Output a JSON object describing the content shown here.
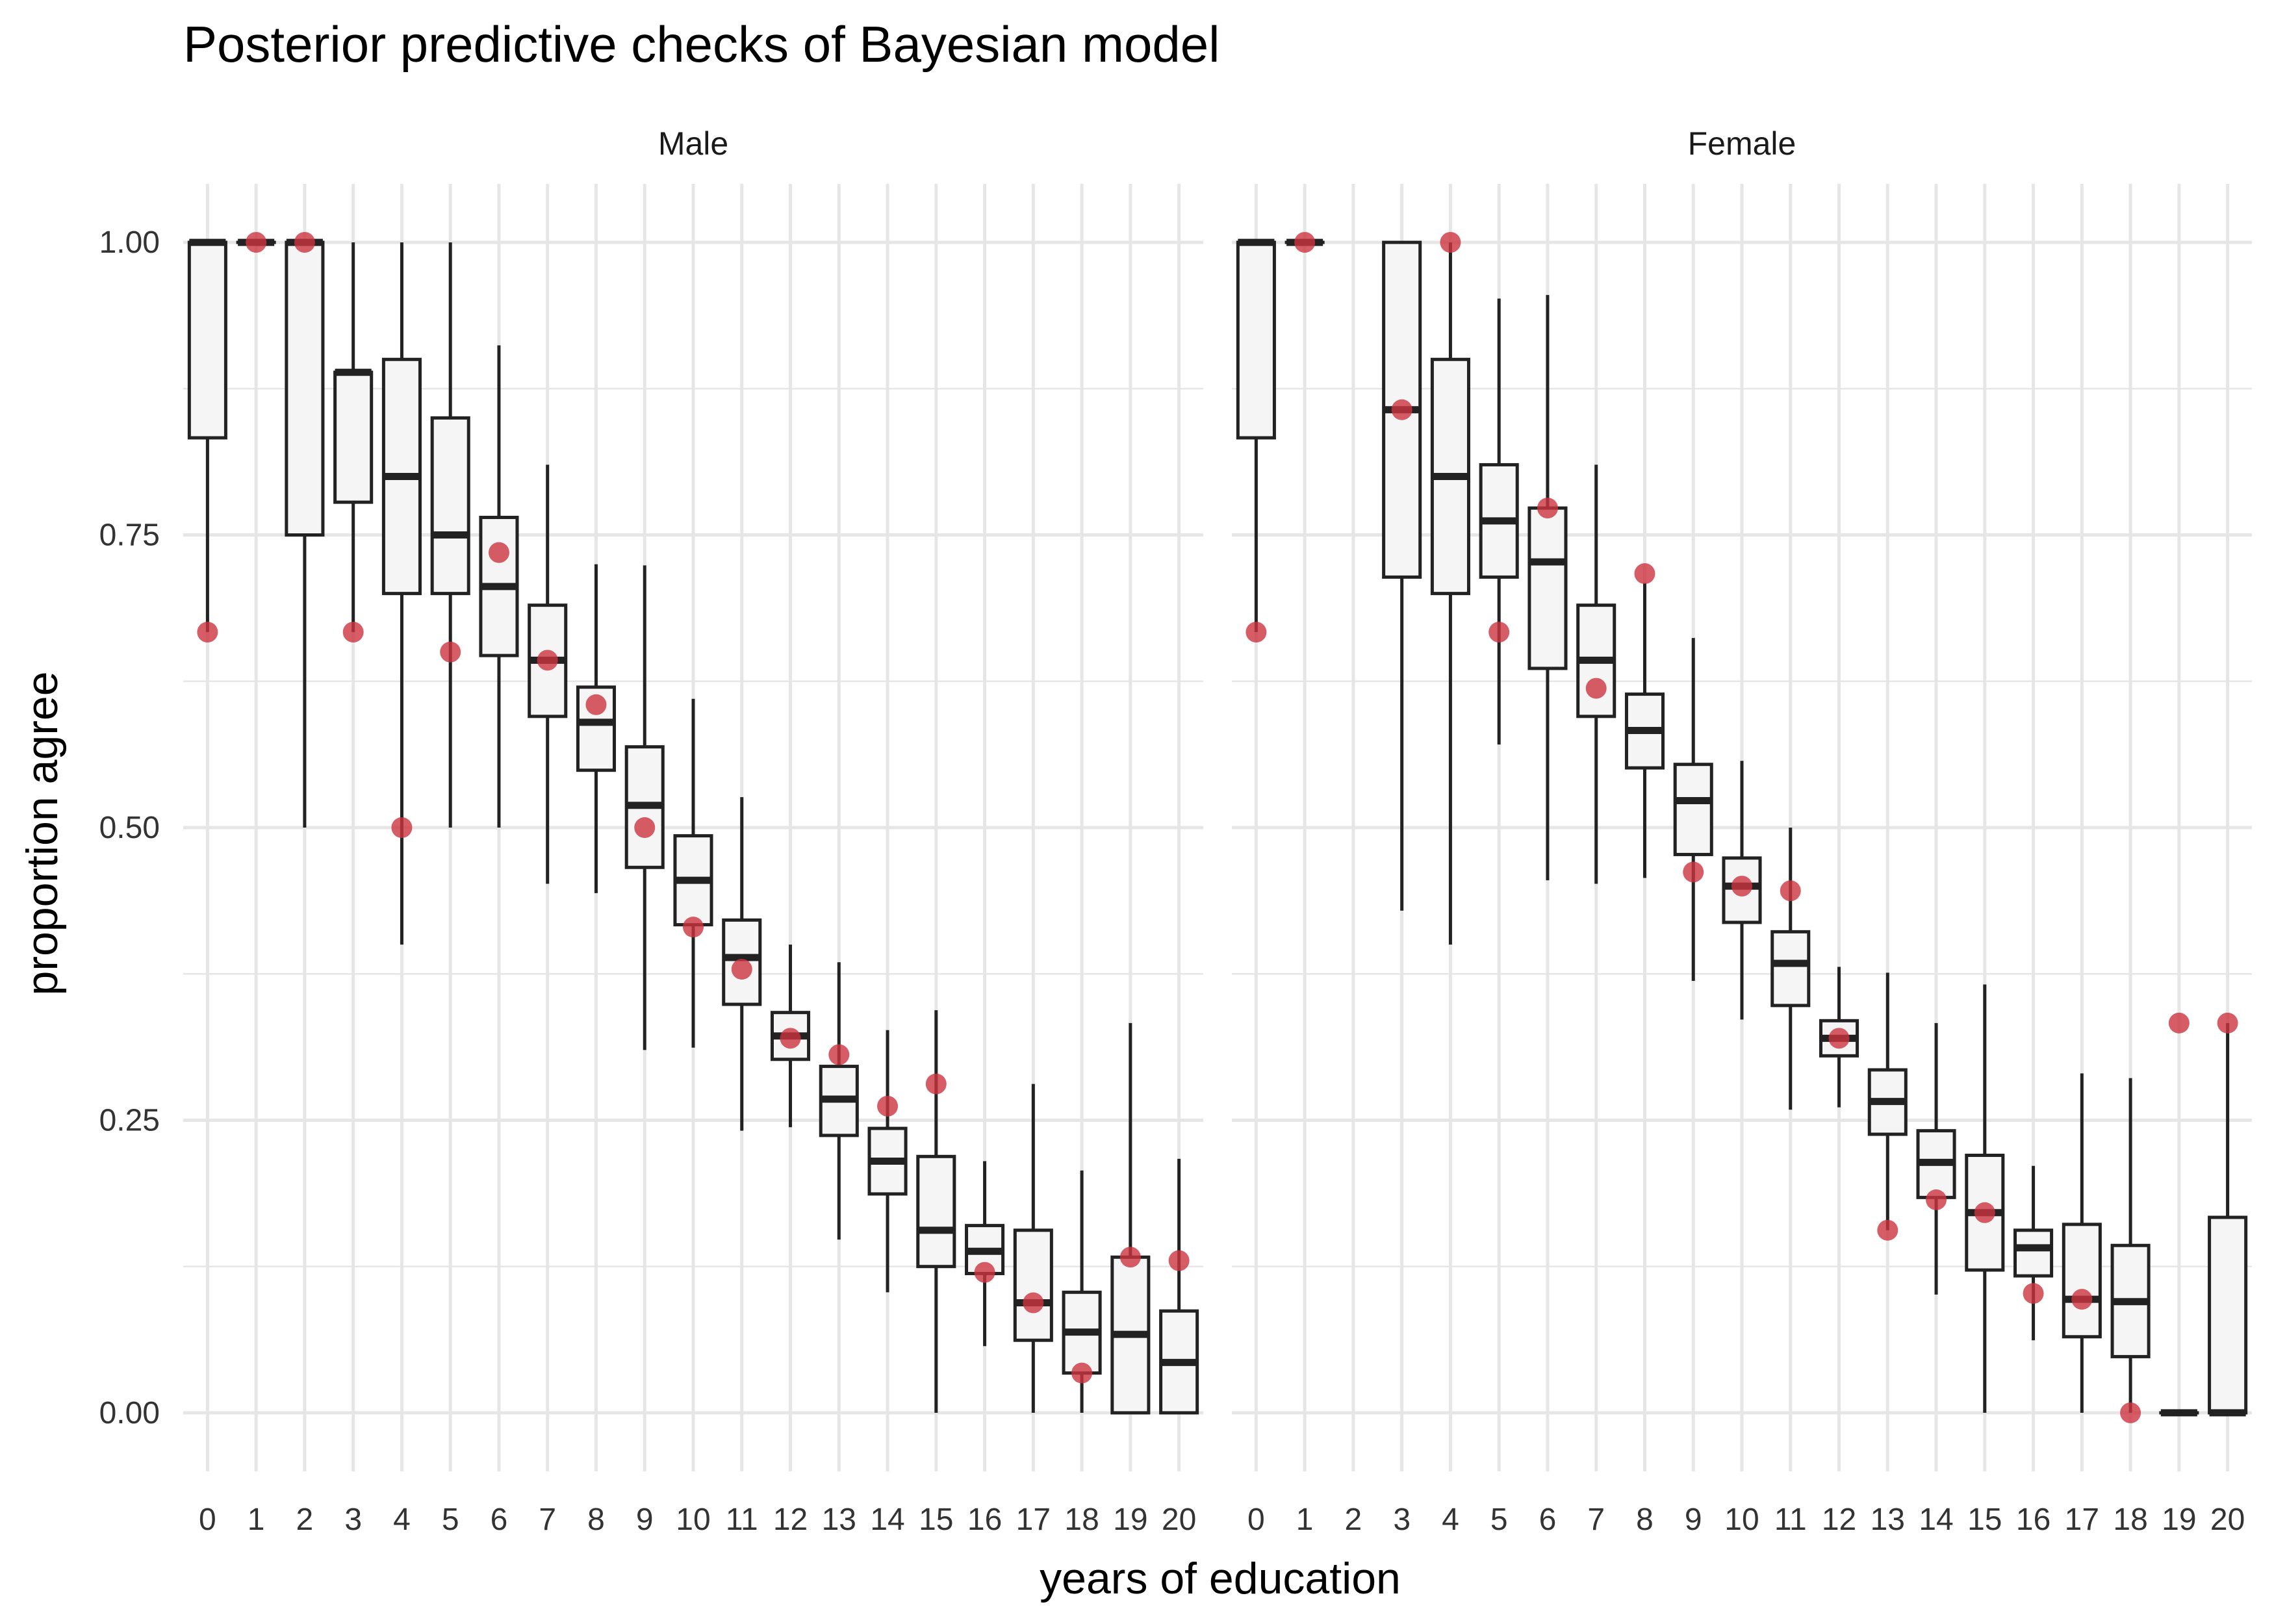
{
  "chart_data": {
    "type": "boxplot",
    "title": "Posterior predictive checks of Bayesian model",
    "xlabel": "years of education",
    "ylabel": "proportion agree",
    "ylim": [
      -0.05,
      1.05
    ],
    "y_ticks": [
      0,
      0.25,
      0.5,
      0.75,
      1
    ],
    "y_tick_labels": [
      "0.00",
      "0.25",
      "0.50",
      "0.75",
      "1.00"
    ],
    "x_categories": [
      "0",
      "1",
      "2",
      "3",
      "4",
      "5",
      "6",
      "7",
      "8",
      "9",
      "10",
      "11",
      "12",
      "13",
      "14",
      "15",
      "16",
      "17",
      "18",
      "19",
      "20"
    ],
    "grid": true,
    "colors": {
      "box_fill": "#f5f5f5",
      "box_line": "#222222",
      "observed_point": "#cc3340",
      "grid": "#e6e6e6",
      "text": "#333333"
    },
    "facets": [
      {
        "label": "Male",
        "boxes": [
          {
            "x": 0,
            "min": 0.667,
            "q1": 0.833,
            "median": 1.0,
            "q3": 1.0,
            "max": 1.0
          },
          {
            "x": 1,
            "min": 1.0,
            "q1": 1.0,
            "median": 1.0,
            "q3": 1.0,
            "max": 1.0
          },
          {
            "x": 2,
            "min": 0.5,
            "q1": 0.75,
            "median": 1.0,
            "q3": 1.0,
            "max": 1.0
          },
          {
            "x": 3,
            "min": 0.667,
            "q1": 0.778,
            "median": 0.889,
            "q3": 0.889,
            "max": 1.0
          },
          {
            "x": 4,
            "min": 0.4,
            "q1": 0.7,
            "median": 0.8,
            "q3": 0.9,
            "max": 1.0
          },
          {
            "x": 5,
            "min": 0.5,
            "q1": 0.7,
            "median": 0.75,
            "q3": 0.85,
            "max": 1.0
          },
          {
            "x": 6,
            "min": 0.5,
            "q1": 0.647,
            "median": 0.706,
            "q3": 0.765,
            "max": 0.912
          },
          {
            "x": 7,
            "min": 0.452,
            "q1": 0.595,
            "median": 0.643,
            "q3": 0.69,
            "max": 0.81
          },
          {
            "x": 8,
            "min": 0.444,
            "q1": 0.549,
            "median": 0.59,
            "q3": 0.62,
            "max": 0.725
          },
          {
            "x": 9,
            "min": 0.31,
            "q1": 0.466,
            "median": 0.519,
            "q3": 0.569,
            "max": 0.724
          },
          {
            "x": 10,
            "min": 0.312,
            "q1": 0.417,
            "median": 0.455,
            "q3": 0.493,
            "max": 0.61
          },
          {
            "x": 11,
            "min": 0.241,
            "q1": 0.349,
            "median": 0.389,
            "q3": 0.421,
            "max": 0.526
          },
          {
            "x": 12,
            "min": 0.244,
            "q1": 0.302,
            "median": 0.322,
            "q3": 0.342,
            "max": 0.4
          },
          {
            "x": 13,
            "min": 0.148,
            "q1": 0.237,
            "median": 0.268,
            "q3": 0.296,
            "max": 0.385
          },
          {
            "x": 14,
            "min": 0.103,
            "q1": 0.187,
            "median": 0.215,
            "q3": 0.243,
            "max": 0.327
          },
          {
            "x": 15,
            "min": 0.0,
            "q1": 0.125,
            "median": 0.156,
            "q3": 0.219,
            "max": 0.344
          },
          {
            "x": 16,
            "min": 0.057,
            "q1": 0.119,
            "median": 0.138,
            "q3": 0.16,
            "max": 0.215
          },
          {
            "x": 17,
            "min": 0.0,
            "q1": 0.062,
            "median": 0.094,
            "q3": 0.156,
            "max": 0.281
          },
          {
            "x": 18,
            "min": 0.0,
            "q1": 0.034,
            "median": 0.069,
            "q3": 0.103,
            "max": 0.207
          },
          {
            "x": 19,
            "min": 0.0,
            "q1": 0.0,
            "median": 0.067,
            "q3": 0.133,
            "max": 0.333
          },
          {
            "x": 20,
            "min": 0.0,
            "q1": 0.0,
            "median": 0.043,
            "q3": 0.087,
            "max": 0.217
          }
        ],
        "observed": [
          {
            "x": 0,
            "y": 0.667
          },
          {
            "x": 1,
            "y": 1.0
          },
          {
            "x": 2,
            "y": 1.0
          },
          {
            "x": 3,
            "y": 0.667
          },
          {
            "x": 4,
            "y": 0.5
          },
          {
            "x": 5,
            "y": 0.65
          },
          {
            "x": 6,
            "y": 0.735
          },
          {
            "x": 7,
            "y": 0.643
          },
          {
            "x": 8,
            "y": 0.605
          },
          {
            "x": 9,
            "y": 0.5
          },
          {
            "x": 10,
            "y": 0.415
          },
          {
            "x": 11,
            "y": 0.379
          },
          {
            "x": 12,
            "y": 0.32
          },
          {
            "x": 13,
            "y": 0.306
          },
          {
            "x": 14,
            "y": 0.262
          },
          {
            "x": 15,
            "y": 0.281
          },
          {
            "x": 16,
            "y": 0.12
          },
          {
            "x": 17,
            "y": 0.094
          },
          {
            "x": 18,
            "y": 0.034
          },
          {
            "x": 19,
            "y": 0.133
          },
          {
            "x": 20,
            "y": 0.13
          }
        ]
      },
      {
        "label": "Female",
        "boxes": [
          {
            "x": 0,
            "min": 0.667,
            "q1": 0.833,
            "median": 1.0,
            "q3": 1.0,
            "max": 1.0
          },
          {
            "x": 1,
            "min": 1.0,
            "q1": 1.0,
            "median": 1.0,
            "q3": 1.0,
            "max": 1.0
          },
          {
            "x": 3,
            "min": 0.429,
            "q1": 0.714,
            "median": 0.857,
            "q3": 1.0,
            "max": 1.0
          },
          {
            "x": 4,
            "min": 0.4,
            "q1": 0.7,
            "median": 0.8,
            "q3": 0.9,
            "max": 1.0
          },
          {
            "x": 5,
            "min": 0.571,
            "q1": 0.714,
            "median": 0.762,
            "q3": 0.81,
            "max": 0.952
          },
          {
            "x": 6,
            "min": 0.455,
            "q1": 0.636,
            "median": 0.727,
            "q3": 0.773,
            "max": 0.955
          },
          {
            "x": 7,
            "min": 0.452,
            "q1": 0.595,
            "median": 0.643,
            "q3": 0.69,
            "max": 0.81
          },
          {
            "x": 8,
            "min": 0.457,
            "q1": 0.551,
            "median": 0.583,
            "q3": 0.614,
            "max": 0.709
          },
          {
            "x": 9,
            "min": 0.369,
            "q1": 0.477,
            "median": 0.523,
            "q3": 0.554,
            "max": 0.662
          },
          {
            "x": 10,
            "min": 0.336,
            "q1": 0.419,
            "median": 0.45,
            "q3": 0.474,
            "max": 0.557
          },
          {
            "x": 11,
            "min": 0.259,
            "q1": 0.348,
            "median": 0.384,
            "q3": 0.411,
            "max": 0.5
          },
          {
            "x": 12,
            "min": 0.261,
            "q1": 0.305,
            "median": 0.32,
            "q3": 0.335,
            "max": 0.381
          },
          {
            "x": 13,
            "min": 0.156,
            "q1": 0.238,
            "median": 0.266,
            "q3": 0.293,
            "max": 0.376
          },
          {
            "x": 14,
            "min": 0.101,
            "q1": 0.184,
            "median": 0.214,
            "q3": 0.241,
            "max": 0.333
          },
          {
            "x": 15,
            "min": 0.0,
            "q1": 0.122,
            "median": 0.171,
            "q3": 0.22,
            "max": 0.366
          },
          {
            "x": 16,
            "min": 0.062,
            "q1": 0.117,
            "median": 0.141,
            "q3": 0.156,
            "max": 0.211
          },
          {
            "x": 17,
            "min": 0.0,
            "q1": 0.065,
            "median": 0.097,
            "q3": 0.161,
            "max": 0.29
          },
          {
            "x": 18,
            "min": 0.0,
            "q1": 0.048,
            "median": 0.095,
            "q3": 0.143,
            "max": 0.286
          },
          {
            "x": 19,
            "min": 0.0,
            "q1": 0.0,
            "median": 0.0,
            "q3": 0.0,
            "max": 0.0
          },
          {
            "x": 20,
            "min": 0.0,
            "q1": 0.0,
            "median": 0.0,
            "q3": 0.167,
            "max": 0.333
          }
        ],
        "observed": [
          {
            "x": 0,
            "y": 0.667
          },
          {
            "x": 1,
            "y": 1.0
          },
          {
            "x": 3,
            "y": 0.857
          },
          {
            "x": 4,
            "y": 1.0
          },
          {
            "x": 5,
            "y": 0.667
          },
          {
            "x": 6,
            "y": 0.773
          },
          {
            "x": 7,
            "y": 0.619
          },
          {
            "x": 8,
            "y": 0.717
          },
          {
            "x": 9,
            "y": 0.462
          },
          {
            "x": 10,
            "y": 0.45
          },
          {
            "x": 11,
            "y": 0.446
          },
          {
            "x": 12,
            "y": 0.32
          },
          {
            "x": 13,
            "y": 0.156
          },
          {
            "x": 14,
            "y": 0.182
          },
          {
            "x": 15,
            "y": 0.171
          },
          {
            "x": 16,
            "y": 0.102
          },
          {
            "x": 17,
            "y": 0.097
          },
          {
            "x": 18,
            "y": 0.0
          },
          {
            "x": 19,
            "y": 0.333
          },
          {
            "x": 20,
            "y": 0.333
          }
        ]
      }
    ]
  }
}
